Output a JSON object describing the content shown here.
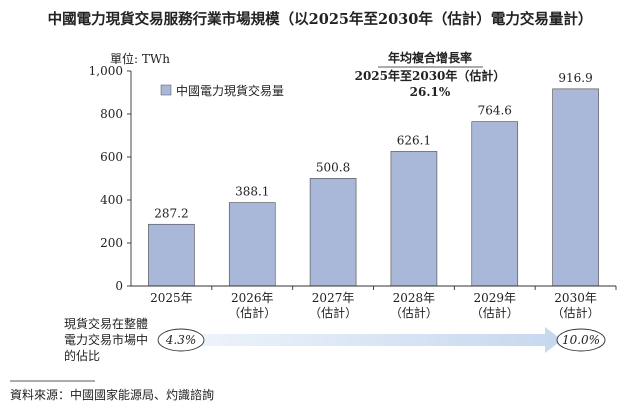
{
  "title": "中國電力現貨交易服務行業市場規模（以2025年至2030年（估計）電力交易量計）",
  "unit_label": "單位: TWh",
  "cagr": {
    "heading": "年均複合增長率",
    "period": "2025年至2030年（估計）",
    "value": "26.1%"
  },
  "share": {
    "label_lines": [
      "現貨交易在整體",
      "電力交易市場中",
      "的佔比"
    ],
    "start": "4.3%",
    "end": "10.0%"
  },
  "source": "資料來源：中國國家能源局、灼識諮詢",
  "colors": {
    "bar": "#a9b8d9",
    "bar_stroke": "#4a4a4a",
    "arrow": "#d6e3f3"
  },
  "chart_data": {
    "type": "bar",
    "categories": [
      [
        "2025年"
      ],
      [
        "2026年",
        "（估計）"
      ],
      [
        "2027年",
        "（估計）"
      ],
      [
        "2028年",
        "（估計）"
      ],
      [
        "2029年",
        "（估計）"
      ],
      [
        "2030年",
        "（估計）"
      ]
    ],
    "series": [
      {
        "name": "中國電力現貨交易量",
        "values": [
          287.2,
          388.1,
          500.8,
          626.1,
          764.6,
          916.9
        ]
      }
    ],
    "value_labels": [
      "287.2",
      "388.1",
      "500.8",
      "626.1",
      "764.6",
      "916.9"
    ],
    "yticks": [
      "0",
      "200",
      "400",
      "600",
      "800",
      "1,000"
    ],
    "ylim": [
      0,
      1000
    ],
    "legend_position": "top-left",
    "grid": false
  }
}
